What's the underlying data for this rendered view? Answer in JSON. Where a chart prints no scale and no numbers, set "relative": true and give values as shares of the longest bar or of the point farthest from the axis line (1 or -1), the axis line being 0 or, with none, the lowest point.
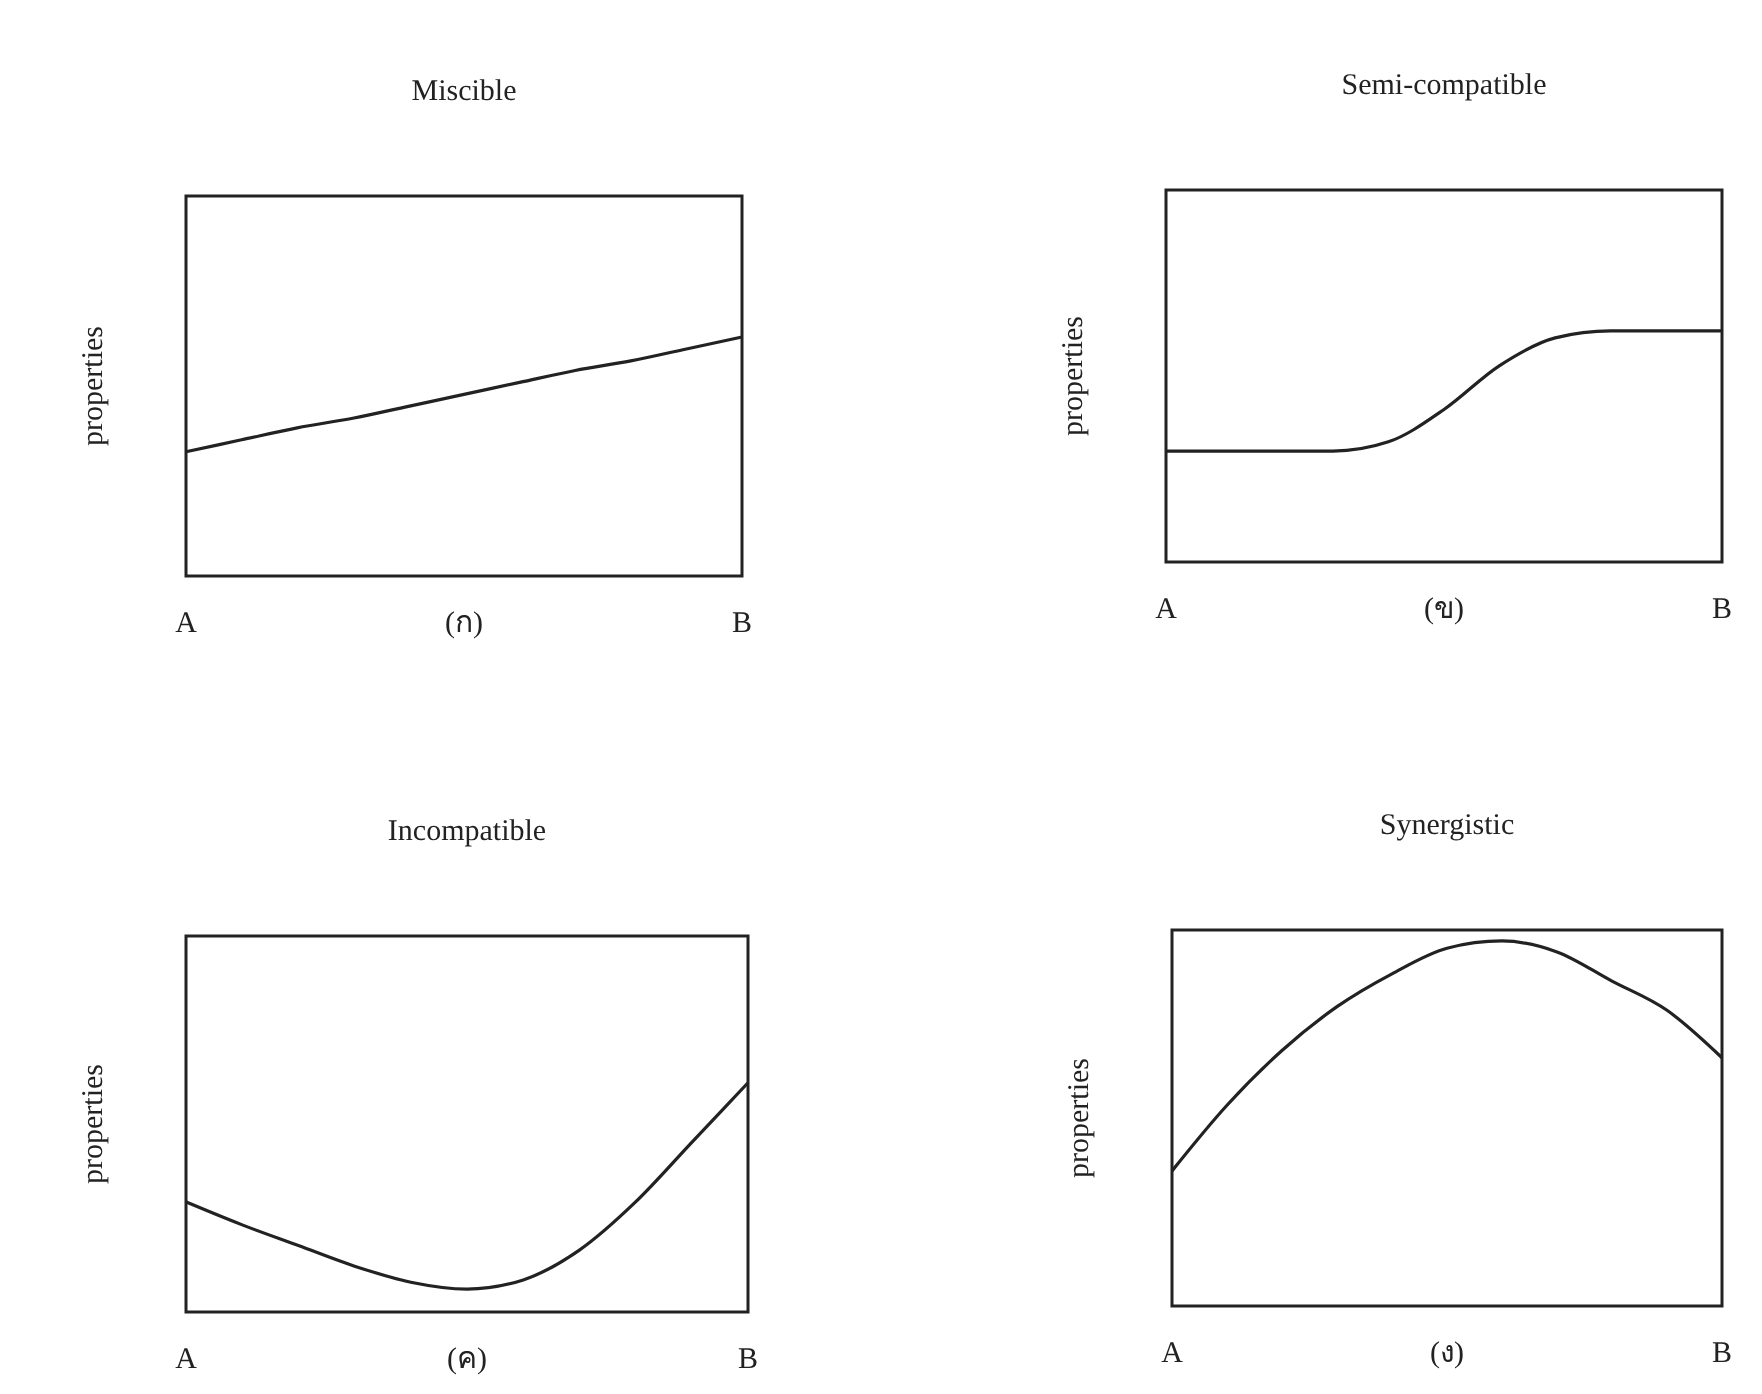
{
  "chart_data": [
    {
      "type": "line",
      "title": "Miscible",
      "xlabel": "(ก)",
      "ylabel": "properties",
      "relative": true,
      "categories": [
        "A",
        null,
        null,
        null,
        null,
        null,
        null,
        null,
        null,
        null,
        "B"
      ],
      "series": [
        {
          "color": "#222222",
          "values": [
            0.52,
            0.57,
            0.62,
            0.66,
            0.71,
            0.76,
            0.81,
            0.86,
            0.9,
            0.95,
            1
          ]
        }
      ]
    },
    {
      "type": "line",
      "title": "Semi-compatible",
      "xlabel": "(ข)",
      "ylabel": "properties",
      "relative": true,
      "categories": [
        "A",
        null,
        null,
        null,
        null,
        null,
        null,
        null,
        null,
        null,
        "B"
      ],
      "series": [
        {
          "color": "#222222",
          "values": [
            0.48,
            0.48,
            0.48,
            0.48,
            0.52,
            0.66,
            0.85,
            0.97,
            1,
            1,
            1
          ]
        }
      ]
    },
    {
      "type": "line",
      "title": "Incompatible",
      "xlabel": "(ค)",
      "ylabel": "properties",
      "relative": true,
      "categories": [
        "A",
        null,
        null,
        null,
        null,
        null,
        null,
        null,
        null,
        null,
        "B"
      ],
      "series": [
        {
          "color": "#222222",
          "values": [
            0.48,
            0.38,
            0.29,
            0.2,
            0.13,
            0.1,
            0.14,
            0.27,
            0.48,
            0.74,
            1
          ]
        }
      ]
    },
    {
      "type": "line",
      "title": "Synergistic",
      "xlabel": "(ง)",
      "ylabel": "properties",
      "relative": true,
      "categories": [
        "A",
        null,
        null,
        null,
        null,
        null,
        null,
        null,
        null,
        null,
        "B"
      ],
      "series": [
        {
          "color": "#222222",
          "values": [
            0.37,
            0.55,
            0.7,
            0.82,
            0.91,
            0.98,
            1,
            0.97,
            0.89,
            0.81,
            0.68
          ]
        }
      ]
    }
  ]
}
